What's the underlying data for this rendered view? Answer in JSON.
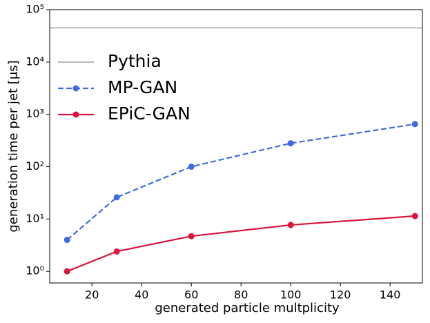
{
  "chart_data": {
    "type": "line",
    "xlabel": "generated particle multplicity",
    "ylabel": "generation time per jet [μs]",
    "xlim": [
      3,
      153
    ],
    "xticks": [
      20,
      40,
      60,
      80,
      100,
      120,
      140
    ],
    "ylim": [
      0.6,
      100000
    ],
    "log_y": true,
    "yticks": [
      {
        "value": 1,
        "label": "10⁰"
      },
      {
        "value": 10,
        "label": "10¹"
      },
      {
        "value": 100,
        "label": "10²"
      },
      {
        "value": 1000,
        "label": "10³"
      },
      {
        "value": 10000,
        "label": "10⁴"
      },
      {
        "value": 100000,
        "label": "10⁵"
      }
    ],
    "legend": "upper left",
    "hlines": [
      {
        "name": "Pythia",
        "color": "#bdbdbd",
        "value": 45000
      }
    ],
    "x": [
      10,
      30,
      60,
      100,
      150
    ],
    "series": [
      {
        "name": "MP-GAN",
        "color": "#4169e1",
        "dashed": true,
        "values": [
          4,
          26,
          100,
          280,
          650
        ]
      },
      {
        "name": "EPiC-GAN",
        "color": "#dc143c",
        "dashed": false,
        "values": [
          1,
          2.4,
          4.7,
          7.7,
          11.4
        ]
      }
    ]
  }
}
